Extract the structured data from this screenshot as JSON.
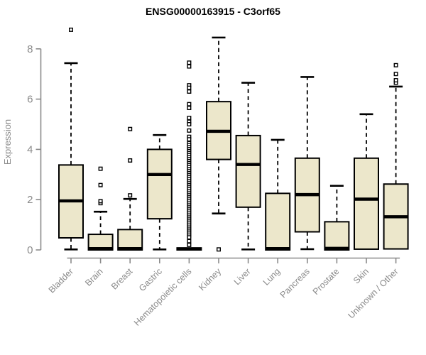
{
  "chart": {
    "colors": {
      "box_fill": "#ece7cb",
      "box_stroke": "#000000",
      "median": "#000000",
      "whisker": "#000000",
      "outlier_fill": "#ffffff",
      "axis": "#8a8a8a",
      "tick_label": "#8a8a8a",
      "title": "#000000"
    }
  },
  "chart_data": {
    "type": "boxplot",
    "title": "ENSG00000163915 - C3orf65",
    "xlabel": "",
    "ylabel": "Expression",
    "ylim": [
      0,
      8.9
    ],
    "yticks": [
      0,
      2,
      4,
      6,
      8
    ],
    "grid": false,
    "legend": false,
    "categories": [
      "Bladder",
      "Brain",
      "Breast",
      "Gastric",
      "Hematopoietic cells",
      "Kidney",
      "Liver",
      "Lung",
      "Pancreas",
      "Prostate",
      "Skin",
      "Unknown / Other"
    ],
    "boxes": [
      {
        "name": "Bladder",
        "whisker_low": 0.02,
        "q1": 0.48,
        "median": 1.95,
        "q3": 3.38,
        "whisker_high": 7.43,
        "outliers": [
          8.76
        ]
      },
      {
        "name": "Brain",
        "whisker_low": 0.0,
        "q1": 0.0,
        "median": 0.05,
        "q3": 0.62,
        "whisker_high": 1.52,
        "outliers": [
          1.86,
          1.94,
          2.58,
          3.23
        ]
      },
      {
        "name": "Breast",
        "whisker_low": 0.0,
        "q1": 0.0,
        "median": 0.05,
        "q3": 0.81,
        "whisker_high": 2.03,
        "outliers": [
          2.17,
          3.56,
          4.81
        ]
      },
      {
        "name": "Gastric",
        "whisker_low": 0.02,
        "q1": 1.24,
        "median": 3.0,
        "q3": 4.0,
        "whisker_high": 4.57,
        "outliers": []
      },
      {
        "name": "Hematopoietic cells",
        "whisker_low": 0.0,
        "q1": 0.0,
        "median": 0.04,
        "q3": 0.08,
        "whisker_high": 0.08,
        "outliers": [
          7.45,
          7.3,
          6.55,
          6.45,
          6.3,
          5.8,
          5.65,
          5.25,
          5.1,
          5.0,
          4.75,
          4.5,
          4.4,
          4.25,
          4.17,
          4.09,
          4.01,
          3.93,
          3.85,
          3.77,
          3.69,
          3.61,
          3.53,
          3.45,
          3.37,
          3.29,
          3.21,
          3.13,
          3.05,
          2.97,
          2.89,
          2.81,
          2.73,
          2.65,
          2.57,
          2.49,
          2.41,
          2.33,
          2.25,
          2.17,
          2.09,
          2.01,
          1.93,
          1.85,
          1.77,
          1.69,
          1.61,
          1.53,
          1.45,
          1.37,
          1.29,
          1.21,
          1.13,
          1.05,
          0.97,
          0.89,
          0.81,
          0.73,
          0.65,
          0.57,
          0.5,
          0.35,
          0.2
        ]
      },
      {
        "name": "Kidney",
        "whisker_low": 1.45,
        "q1": 3.6,
        "median": 4.72,
        "q3": 5.9,
        "whisker_high": 8.45,
        "outliers": [
          0.02
        ]
      },
      {
        "name": "Liver",
        "whisker_low": 0.02,
        "q1": 1.7,
        "median": 3.4,
        "q3": 4.55,
        "whisker_high": 6.65,
        "outliers": []
      },
      {
        "name": "Lung",
        "whisker_low": 0.0,
        "q1": 0.0,
        "median": 0.05,
        "q3": 2.25,
        "whisker_high": 4.38,
        "outliers": []
      },
      {
        "name": "Pancreas",
        "whisker_low": 0.03,
        "q1": 0.72,
        "median": 2.2,
        "q3": 3.65,
        "whisker_high": 6.88,
        "outliers": []
      },
      {
        "name": "Prostate",
        "whisker_low": 0.0,
        "q1": 0.0,
        "median": 0.06,
        "q3": 1.12,
        "whisker_high": 2.55,
        "outliers": []
      },
      {
        "name": "Skin",
        "whisker_low": 0.03,
        "q1": 0.03,
        "median": 2.02,
        "q3": 3.65,
        "whisker_high": 5.4,
        "outliers": []
      },
      {
        "name": "Unknown / Other",
        "whisker_low": 0.04,
        "q1": 0.04,
        "median": 1.32,
        "q3": 2.62,
        "whisker_high": 6.5,
        "outliers": [
          6.65,
          6.75,
          7.0,
          7.35
        ]
      }
    ]
  }
}
